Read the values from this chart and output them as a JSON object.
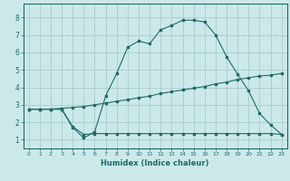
{
  "xlabel": "Humidex (Indice chaleur)",
  "xlim": [
    -0.5,
    23.5
  ],
  "ylim": [
    0.5,
    8.8
  ],
  "yticks": [
    1,
    2,
    3,
    4,
    5,
    6,
    7,
    8
  ],
  "xticks": [
    0,
    1,
    2,
    3,
    4,
    5,
    6,
    7,
    8,
    9,
    10,
    11,
    12,
    13,
    14,
    15,
    16,
    17,
    18,
    19,
    20,
    21,
    22,
    23
  ],
  "bg_color": "#cce9e9",
  "line_color": "#1a6b6b",
  "grid_color": "#aacccc",
  "line1_x": [
    0,
    1,
    2,
    3,
    4,
    5,
    6,
    7,
    8,
    9,
    10,
    11,
    12,
    13,
    14,
    15,
    16,
    17,
    18,
    19,
    20,
    21,
    22,
    23
  ],
  "line1_y": [
    2.75,
    2.75,
    2.75,
    2.75,
    1.7,
    1.1,
    1.45,
    3.5,
    4.8,
    6.3,
    6.65,
    6.5,
    7.3,
    7.55,
    7.85,
    7.85,
    7.75,
    7.0,
    5.75,
    4.75,
    3.8,
    2.5,
    1.85,
    1.3
  ],
  "line2_x": [
    0,
    1,
    2,
    3,
    4,
    5,
    6,
    7,
    8,
    9,
    10,
    11,
    12,
    13,
    14,
    15,
    16,
    17,
    18,
    19,
    20,
    21,
    22,
    23
  ],
  "line2_y": [
    2.75,
    2.75,
    2.75,
    2.8,
    2.85,
    2.9,
    3.0,
    3.1,
    3.2,
    3.3,
    3.4,
    3.5,
    3.65,
    3.75,
    3.85,
    3.95,
    4.05,
    4.2,
    4.3,
    4.45,
    4.55,
    4.65,
    4.7,
    4.8
  ],
  "line3_x": [
    0,
    1,
    2,
    3,
    4,
    5,
    6,
    7,
    8,
    9,
    10,
    11,
    12,
    13,
    14,
    15,
    16,
    17,
    18,
    19,
    20,
    21,
    22,
    23
  ],
  "line3_y": [
    2.75,
    2.75,
    2.75,
    2.75,
    1.75,
    1.3,
    1.35,
    1.35,
    1.35,
    1.35,
    1.35,
    1.35,
    1.35,
    1.35,
    1.35,
    1.35,
    1.35,
    1.35,
    1.35,
    1.35,
    1.35,
    1.35,
    1.35,
    1.3
  ]
}
